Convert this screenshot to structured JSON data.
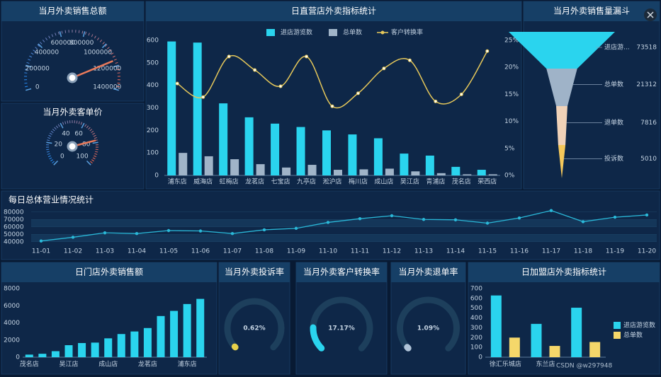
{
  "chart_data": [
    {
      "type": "gauge",
      "title": "当月外卖销售总额",
      "range": [
        0,
        1400000
      ],
      "ticks": [
        0,
        200000,
        400000,
        600000,
        800000,
        1000000,
        1200000,
        1400000
      ],
      "value": 1150000
    },
    {
      "type": "gauge",
      "title": "当月外卖客单价",
      "range": [
        0,
        100
      ],
      "ticks": [
        0,
        20,
        40,
        60,
        80,
        100
      ],
      "value": 78
    },
    {
      "type": "bar",
      "title": "日直营店外卖指标统计",
      "categories": [
        "浦东店",
        "威海店",
        "虹梅店",
        "龙茗店",
        "七宝店",
        "九亭店",
        "淞沪店",
        "梅川店",
        "成山店",
        "吴江店",
        "青浦店",
        "茂名店",
        "荣西店"
      ],
      "series": [
        {
          "name": "进店游览数",
          "color": "#2ad4ee",
          "values": [
            595,
            590,
            320,
            258,
            230,
            215,
            200,
            182,
            165,
            97,
            88,
            38,
            25
          ]
        },
        {
          "name": "总单数",
          "color": "#a0b4c8",
          "values": [
            100,
            85,
            72,
            50,
            35,
            47,
            25,
            27,
            30,
            18,
            10,
            5,
            5
          ]
        },
        {
          "name": "客户转换率",
          "color": "#e6c85a",
          "axis": "y2",
          "type": "line",
          "values": [
            17,
            14.5,
            22,
            19.5,
            16.5,
            22,
            12.8,
            15.2,
            19.8,
            21.3,
            13.7,
            15,
            23
          ]
        }
      ],
      "ylim": [
        0,
        600
      ],
      "yticks": [
        0,
        100,
        200,
        300,
        400,
        500,
        600
      ],
      "y2lim": [
        0,
        25
      ],
      "y2ticks": [
        {
          "value": 0,
          "label": "0%"
        },
        {
          "value": 5,
          "label": "5%"
        },
        {
          "value": 10,
          "label": "10%"
        },
        {
          "value": 15,
          "label": "15%"
        },
        {
          "value": 20,
          "label": "20%"
        },
        {
          "value": 25,
          "label": "25%"
        }
      ],
      "grid": false,
      "legend": "top"
    },
    {
      "type": "funnel",
      "title": "当月外卖销售量漏斗",
      "categories": [
        "进店游...",
        "总单数",
        "退单数",
        "投诉数"
      ],
      "values": [
        73518,
        21312,
        7816,
        5010
      ],
      "colors": [
        "#2ad4ee",
        "#9fb3c8",
        "#f0d2b8",
        "#f5c85a"
      ]
    },
    {
      "type": "line",
      "title": "每日总体营业情况统计",
      "categories": [
        "11-01",
        "11-02",
        "11-03",
        "11-04",
        "11-05",
        "11-06",
        "11-07",
        "11-08",
        "11-09",
        "11-10",
        "11-11",
        "11-12",
        "11-13",
        "11-14",
        "11-15",
        "11-16",
        "11-17",
        "11-18",
        "11-19",
        "11-20"
      ],
      "values": [
        41000,
        46000,
        52000,
        51000,
        55000,
        54500,
        51000,
        56000,
        58000,
        66000,
        71000,
        75000,
        70000,
        69500,
        65000,
        72000,
        82000,
        67000,
        73000,
        76000
      ],
      "color": "#2ab8d8",
      "ylim": [
        35000,
        85000
      ],
      "yticks": [
        40000,
        50000,
        60000,
        70000,
        80000
      ]
    },
    {
      "type": "bar",
      "title": "日门店外卖销售额",
      "categories": [
        "茂名店",
        null,
        null,
        "吴江店",
        null,
        null,
        "成山店",
        null,
        null,
        "龙茗店",
        null,
        null,
        "浦东店",
        null
      ],
      "values": [
        300,
        400,
        700,
        1400,
        1650,
        1700,
        2200,
        2700,
        3000,
        3400,
        4800,
        5400,
        6200,
        6800
      ],
      "color": "#2ad4ee",
      "ylim": [
        0,
        8000
      ],
      "yticks": [
        0,
        2000,
        4000,
        6000,
        8000
      ]
    },
    {
      "type": "ring",
      "title": "当月外卖投诉率",
      "range": [
        0,
        100
      ],
      "value": 0.62,
      "value_label": "0.62%",
      "color": "#e6d14a"
    },
    {
      "type": "ring",
      "title": "当月外卖客户转换率",
      "range": [
        0,
        100
      ],
      "value": 17.17,
      "value_label": "17.17%",
      "color": "#2ad4ee"
    },
    {
      "type": "ring",
      "title": "当月外卖退单率",
      "range": [
        0,
        100
      ],
      "value": 1.09,
      "value_label": "1.09%",
      "color": "#b0c4d8"
    },
    {
      "type": "bar",
      "title": "日加盟店外卖指标统计",
      "categories": [
        "徐汇乐城店",
        "东兰店",
        null
      ],
      "series": [
        {
          "name": "进店游览数",
          "color": "#2ad4ee",
          "values": [
            630,
            340,
            505
          ]
        },
        {
          "name": "总单数",
          "color": "#f5d76a",
          "values": [
            200,
            115,
            155
          ]
        }
      ],
      "ylim": [
        0,
        700
      ],
      "yticks": [
        0,
        100,
        200,
        300,
        400,
        500,
        600,
        700
      ],
      "legend": "right"
    }
  ],
  "watermark": "CSDN @w297948"
}
